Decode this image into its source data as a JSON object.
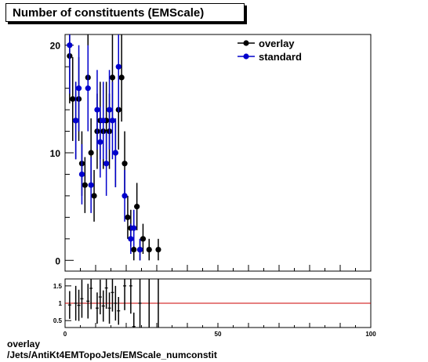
{
  "title": "Number of constituents (EMScale)",
  "footer": {
    "line1": "overlay",
    "line2": "/Jets/AntiKt4EMTopoJets/EMScale_numconstit"
  },
  "colors": {
    "overlay": "#000000",
    "standard": "#0000cc",
    "ratio_line": "#cc0000"
  },
  "chart_data": [
    {
      "type": "scatter",
      "title": "Number of constituents (EMScale)",
      "xlim": [
        0,
        100
      ],
      "ylim": [
        -1,
        21
      ],
      "y_ticks": [
        0,
        10,
        20
      ],
      "legend_position": "top-right",
      "series": [
        {
          "name": "overlay",
          "color": "#000000",
          "points": [
            {
              "x": 1.5,
              "y": 19,
              "err": 4.4
            },
            {
              "x": 2.5,
              "y": 15,
              "err": 3.9
            },
            {
              "x": 3.5,
              "y": 13,
              "err": 3.6
            },
            {
              "x": 4.5,
              "y": 15,
              "err": 3.9
            },
            {
              "x": 5.5,
              "y": 9,
              "err": 3.0
            },
            {
              "x": 6.5,
              "y": 7,
              "err": 2.6
            },
            {
              "x": 7.5,
              "y": 17,
              "err": 4.1
            },
            {
              "x": 8.5,
              "y": 10,
              "err": 3.2
            },
            {
              "x": 9.5,
              "y": 6,
              "err": 2.4
            },
            {
              "x": 10.5,
              "y": 12,
              "err": 3.5
            },
            {
              "x": 11.5,
              "y": 13,
              "err": 3.6
            },
            {
              "x": 12.5,
              "y": 12,
              "err": 3.5
            },
            {
              "x": 13.5,
              "y": 13,
              "err": 3.6
            },
            {
              "x": 14.5,
              "y": 12,
              "err": 3.5
            },
            {
              "x": 15.5,
              "y": 17,
              "err": 4.1
            },
            {
              "x": 16.5,
              "y": 10,
              "err": 3.2
            },
            {
              "x": 17.5,
              "y": 14,
              "err": 3.7
            },
            {
              "x": 18.5,
              "y": 17,
              "err": 4.1
            },
            {
              "x": 19.5,
              "y": 9,
              "err": 3.0
            },
            {
              "x": 20.5,
              "y": 4,
              "err": 2.0
            },
            {
              "x": 21.5,
              "y": 3,
              "err": 1.7
            },
            {
              "x": 22.5,
              "y": 1,
              "err": 1.0
            },
            {
              "x": 23.5,
              "y": 5,
              "err": 2.2
            },
            {
              "x": 24.5,
              "y": 1,
              "err": 1.0
            },
            {
              "x": 25.5,
              "y": 2,
              "err": 1.4
            },
            {
              "x": 27.5,
              "y": 1,
              "err": 1.0
            },
            {
              "x": 30.5,
              "y": 1,
              "err": 1.0
            }
          ]
        },
        {
          "name": "standard",
          "color": "#0000cc",
          "points": [
            {
              "x": 1.5,
              "y": 20,
              "err": 4.5
            },
            {
              "x": 3.5,
              "y": 13,
              "err": 3.6
            },
            {
              "x": 4.5,
              "y": 16,
              "err": 4.0
            },
            {
              "x": 5.5,
              "y": 8,
              "err": 2.8
            },
            {
              "x": 7.5,
              "y": 16,
              "err": 4.0
            },
            {
              "x": 8.5,
              "y": 7,
              "err": 2.6
            },
            {
              "x": 10.5,
              "y": 14,
              "err": 3.7
            },
            {
              "x": 11.5,
              "y": 11,
              "err": 3.3
            },
            {
              "x": 12.5,
              "y": 13,
              "err": 3.6
            },
            {
              "x": 13.5,
              "y": 9,
              "err": 3.0
            },
            {
              "x": 14.5,
              "y": 14,
              "err": 3.7
            },
            {
              "x": 15.5,
              "y": 13,
              "err": 3.6
            },
            {
              "x": 16.5,
              "y": 10,
              "err": 3.2
            },
            {
              "x": 17.5,
              "y": 18,
              "err": 4.2
            },
            {
              "x": 19.5,
              "y": 6,
              "err": 2.4
            },
            {
              "x": 21.5,
              "y": 2,
              "err": 1.4
            },
            {
              "x": 22.5,
              "y": 3,
              "err": 1.7
            },
            {
              "x": 24.5,
              "y": 1,
              "err": 1.0
            }
          ]
        }
      ]
    },
    {
      "type": "scatter",
      "xlim": [
        0,
        100
      ],
      "ylim": [
        0.3,
        1.7
      ],
      "x_ticks": [
        0,
        50,
        100
      ],
      "y_ticks": [
        0.5,
        1,
        1.5
      ],
      "reference_line": 1,
      "series": [
        {
          "name": "ratio",
          "color": "#000000",
          "points": [
            {
              "x": 1.5,
              "y": 0.95,
              "err": 0.4
            },
            {
              "x": 3.5,
              "y": 1.0,
              "err": 0.5
            },
            {
              "x": 4.5,
              "y": 0.94,
              "err": 0.45
            },
            {
              "x": 5.5,
              "y": 1.13,
              "err": 0.55
            },
            {
              "x": 7.5,
              "y": 1.06,
              "err": 0.5
            },
            {
              "x": 8.5,
              "y": 1.43,
              "err": 0.6
            },
            {
              "x": 10.5,
              "y": 0.86,
              "err": 0.45
            },
            {
              "x": 11.5,
              "y": 1.18,
              "err": 0.5
            },
            {
              "x": 12.5,
              "y": 0.92,
              "err": 0.45
            },
            {
              "x": 13.5,
              "y": 1.44,
              "err": 0.6
            },
            {
              "x": 14.5,
              "y": 0.86,
              "err": 0.45
            },
            {
              "x": 15.5,
              "y": 1.31,
              "err": 0.55
            },
            {
              "x": 16.5,
              "y": 1.0,
              "err": 0.5
            },
            {
              "x": 17.5,
              "y": 0.78,
              "err": 0.4
            },
            {
              "x": 19.5,
              "y": 1.5,
              "err": 0.7
            },
            {
              "x": 21.5,
              "y": 1.5,
              "err": 0.8
            },
            {
              "x": 22.5,
              "y": 0.33,
              "err": 0.4
            },
            {
              "x": 24.5,
              "y": 1.0,
              "err": 0.8
            }
          ]
        }
      ],
      "extra_bars_x": [
        27.5,
        30.5
      ]
    }
  ]
}
